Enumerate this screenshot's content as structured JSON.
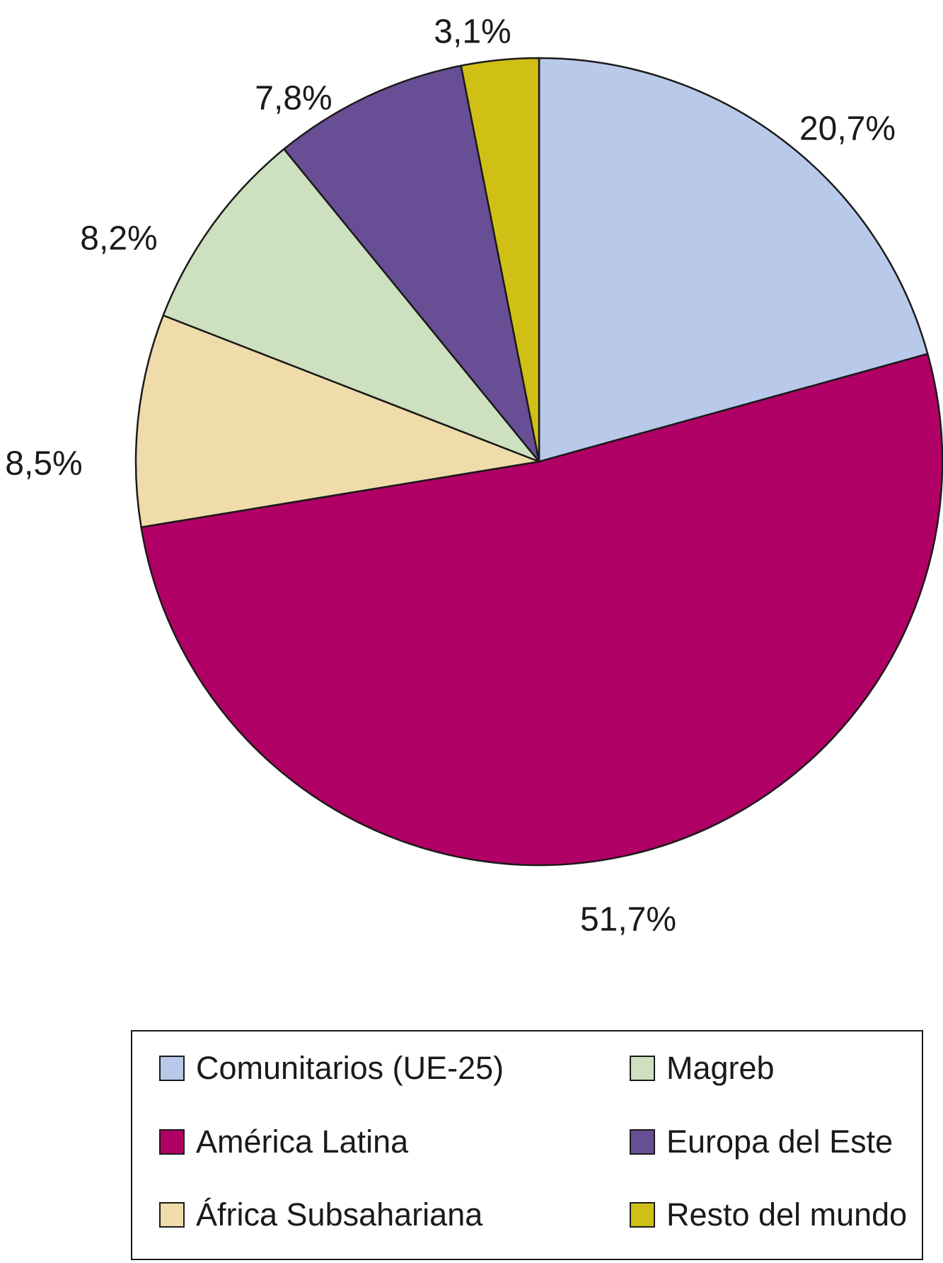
{
  "chart_data": {
    "type": "pie",
    "slices": [
      {
        "name": "Comunitarios (UE-25)",
        "value": 20.7,
        "label": "20,7%",
        "color": "#b9c9e9"
      },
      {
        "name": "América Latina",
        "value": 51.7,
        "label": "51,7%",
        "color": "#b10065"
      },
      {
        "name": "África Subsahariana",
        "value": 8.5,
        "label": "8,5%",
        "color": "#f0dbab"
      },
      {
        "name": "Magreb",
        "value": 8.2,
        "label": "8,2%",
        "color": "#cde0bf"
      },
      {
        "name": "Europa del Este",
        "value": 7.8,
        "label": "7,8%",
        "color": "#684e94"
      },
      {
        "name": "Resto del mundo",
        "value": 3.1,
        "label": "3,1%",
        "color": "#d0c015"
      }
    ],
    "start_angle": "12 o'clock",
    "direction": "clockwise",
    "legend": {
      "placement": "bottom",
      "columns": [
        [
          "Comunitarios (UE-25)",
          "América Latina",
          "África Subsahariana"
        ],
        [
          "Magreb",
          "Europa del Este",
          "Resto del mundo"
        ]
      ]
    }
  }
}
